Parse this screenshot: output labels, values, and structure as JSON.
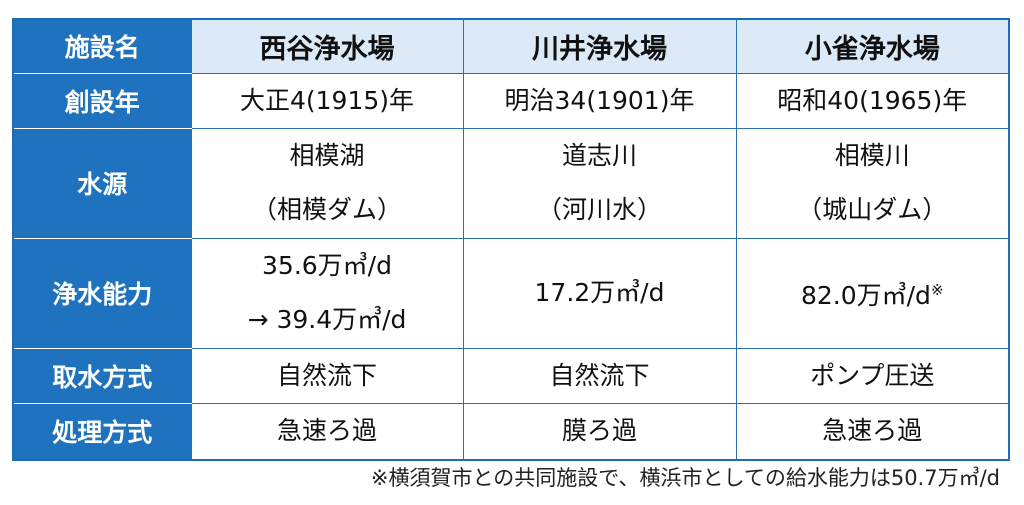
{
  "table": {
    "header": [
      "施設名",
      "西谷浄水場",
      "川井浄水場",
      "小雀浄水場"
    ],
    "rows": [
      {
        "label": "創設年",
        "cells": [
          {
            "lines": [
              "大正4(1915)年"
            ]
          },
          {
            "lines": [
              "明治34(1901)年"
            ]
          },
          {
            "lines": [
              "昭和40(1965)年"
            ]
          }
        ]
      },
      {
        "label": "水源",
        "cells": [
          {
            "lines": [
              "相模湖",
              "（相模ダム）"
            ]
          },
          {
            "lines": [
              "道志川",
              "（河川水）"
            ]
          },
          {
            "lines": [
              "相模川",
              "（城山ダム）"
            ]
          }
        ]
      },
      {
        "label": "浄水能力",
        "cells": [
          {
            "lines": [
              "35.6万㎥/d",
              "→ 39.4万㎥/d"
            ]
          },
          {
            "lines": [
              "17.2万㎥/d"
            ]
          },
          {
            "lines": [
              "82.0万㎥/d"
            ],
            "mark": "※"
          }
        ]
      },
      {
        "label": "取水方式",
        "cells": [
          {
            "lines": [
              "自然流下"
            ]
          },
          {
            "lines": [
              "自然流下"
            ]
          },
          {
            "lines": [
              "ポンプ圧送"
            ]
          }
        ]
      },
      {
        "label": "処理方式",
        "cells": [
          {
            "lines": [
              "急速ろ過"
            ]
          },
          {
            "lines": [
              "膜ろ過"
            ]
          },
          {
            "lines": [
              "急速ろ過"
            ]
          }
        ]
      }
    ]
  },
  "footnote": "※横須賀市との共同施設で、横浜市としての給水能力は50.7万㎥/d"
}
